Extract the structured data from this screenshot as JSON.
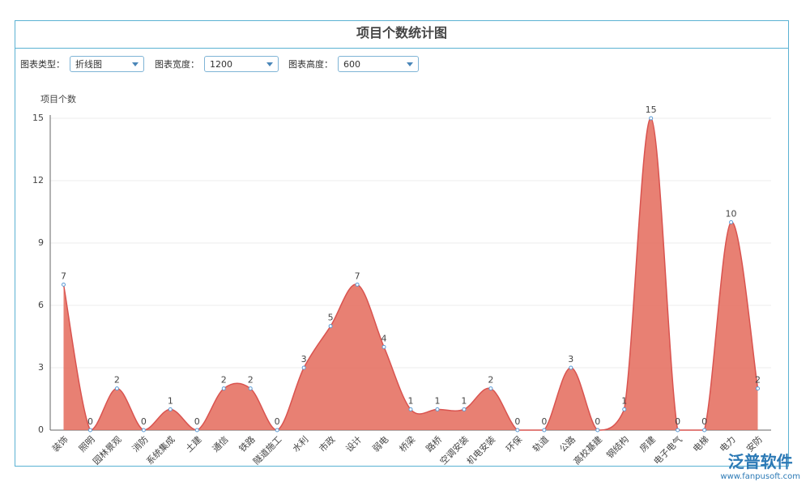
{
  "chart_data": {
    "type": "line",
    "title": "项目个数统计图",
    "y_label": "项目个数",
    "categories": [
      "装饰",
      "照明",
      "园林景观",
      "消防",
      "系统集成",
      "土建",
      "通信",
      "铁路",
      "隧道施工",
      "水利",
      "市政",
      "设计",
      "弱电",
      "桥梁",
      "路桥",
      "空调安装",
      "机电安装",
      "环保",
      "轨道",
      "公路",
      "高校基建",
      "钢结构",
      "房建",
      "电子电气",
      "电梯",
      "电力",
      "安防"
    ],
    "values": [
      7,
      0,
      2,
      0,
      1,
      0,
      2,
      2,
      0,
      3,
      5,
      7,
      4,
      1,
      1,
      1,
      2,
      0,
      0,
      3,
      0,
      1,
      15,
      0,
      0,
      10,
      2
    ],
    "color": "#e46a5b",
    "ylim": [
      0,
      15
    ],
    "yticks": [
      0,
      3,
      6,
      9,
      12,
      15
    ],
    "grid": true,
    "smooth": true,
    "area": true
  },
  "controls": [
    {
      "label": "图表类型：",
      "value": "折线图"
    },
    {
      "label": "图表宽度：",
      "value": "1200"
    },
    {
      "label": "图表高度：",
      "value": "600"
    }
  ],
  "watermark": {
    "brand": "泛普软件",
    "url": "www.fanpusoft.com"
  }
}
